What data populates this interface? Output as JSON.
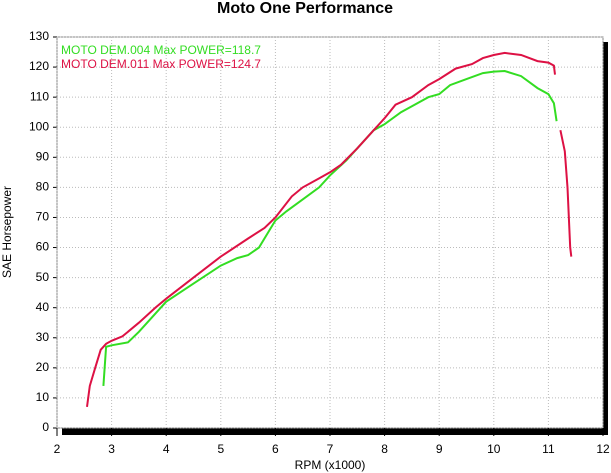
{
  "chart_data": {
    "type": "line",
    "title": "Moto One Performance",
    "x_label": "RPM (x1000)",
    "y_label": "SAE Horsepower",
    "xlim": [
      2,
      12
    ],
    "xticks": [
      2,
      3,
      4,
      5,
      6,
      7,
      8,
      9,
      10,
      11,
      12
    ],
    "ylim": [
      0,
      130
    ],
    "yticks": [
      0,
      10,
      20,
      30,
      40,
      50,
      60,
      70,
      80,
      90,
      100,
      110,
      120,
      130
    ],
    "grid": true,
    "series": [
      {
        "name": "MOTO DEM.004  Max POWER=118.7",
        "color": "#33dd22",
        "x": [
          2.85,
          2.9,
          3.0,
          3.3,
          3.5,
          3.8,
          4.0,
          4.5,
          5.0,
          5.3,
          5.5,
          5.7,
          5.9,
          6.0,
          6.2,
          6.5,
          6.8,
          7.0,
          7.3,
          7.5,
          7.8,
          8.0,
          8.3,
          8.5,
          8.8,
          9.0,
          9.2,
          9.5,
          9.8,
          10.0,
          10.2,
          10.5,
          10.8,
          11.0,
          11.1,
          11.15
        ],
        "values": [
          14,
          27,
          27.5,
          28.5,
          32,
          38,
          42,
          48,
          54,
          56.5,
          57.5,
          60,
          66,
          69,
          72,
          76,
          80,
          84,
          89,
          93,
          99,
          101,
          105,
          107,
          110,
          111,
          114,
          116,
          118,
          118.5,
          118.7,
          117,
          113,
          111,
          108,
          102
        ]
      },
      {
        "name": "MOTO DEM.011  Max POWER=124.7",
        "color": "#dd1144",
        "x": [
          2.55,
          2.6,
          2.7,
          2.8,
          2.9,
          3.0,
          3.2,
          3.5,
          3.8,
          4.0,
          4.5,
          5.0,
          5.5,
          5.8,
          6.0,
          6.3,
          6.5,
          6.8,
          7.0,
          7.2,
          7.5,
          7.8,
          8.0,
          8.2,
          8.5,
          8.8,
          9.0,
          9.3,
          9.6,
          9.8,
          10.0,
          10.2,
          10.5,
          10.8,
          11.0,
          11.1,
          11.12,
          11.17,
          11.22,
          11.3,
          11.35,
          11.4,
          11.42
        ],
        "values": [
          7,
          14,
          20,
          26,
          28,
          29,
          30.5,
          35,
          40,
          43,
          50,
          57,
          63,
          66.5,
          70,
          77,
          80,
          83,
          85,
          87.5,
          93,
          99,
          103,
          107.5,
          110,
          114,
          116,
          119.5,
          121,
          123,
          124,
          124.7,
          124,
          122,
          121.5,
          120.5,
          117.5,
          null,
          99,
          92,
          80,
          60,
          57
        ]
      }
    ]
  }
}
